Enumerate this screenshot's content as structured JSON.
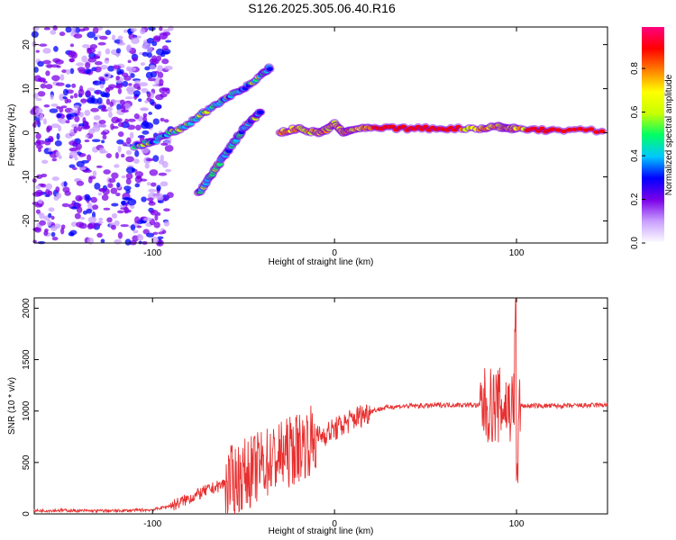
{
  "title": "S126.2025.305.06.40.R16",
  "chart_data": [
    {
      "type": "heatmap",
      "xlabel": "Height of straight line (km)",
      "ylabel": "Frequency (Hz)",
      "xlim": [
        -165,
        150
      ],
      "ylim": [
        -25,
        24
      ],
      "xticks": [
        -100,
        0,
        100
      ],
      "yticks": [
        -20,
        -10,
        0,
        10,
        20
      ],
      "colorbar": {
        "label": "Normalized spectral amplitude",
        "range": [
          0,
          0.99
        ],
        "ticks": [
          0,
          0.2,
          0.4,
          0.6,
          0.8
        ],
        "tick_labels": [
          "0.0",
          "0.2",
          "0.4",
          "0.6",
          "0.8"
        ],
        "colors": [
          "#ffffff",
          "#c9a0ff",
          "#7b00e8",
          "#0000ff",
          "#00c8ff",
          "#00ff64",
          "#c8ff00",
          "#ffff00",
          "#ff8000",
          "#ff0000",
          "#ff0080"
        ]
      },
      "features": [
        {
          "name": "carrier line",
          "x": [
            -30,
            -20,
            -10,
            -5,
            0,
            5,
            10,
            20,
            40,
            60,
            80,
            90,
            95,
            100,
            120,
            150
          ],
          "y": [
            0,
            1,
            0,
            0.5,
            2,
            0,
            1,
            1,
            1,
            1,
            1,
            1.5,
            1,
            1,
            0.5,
            0.5
          ]
        },
        {
          "name": "upper arm",
          "x": [
            -110,
            -100,
            -90,
            -80,
            -70,
            -60,
            -50,
            -40,
            -35
          ],
          "y": [
            -3,
            -2,
            0,
            2,
            5,
            8,
            10,
            13,
            15
          ]
        },
        {
          "name": "lower arm",
          "x": [
            -75,
            -70,
            -65,
            -60,
            -55,
            -50,
            -45,
            -40
          ],
          "y": [
            -14,
            -11,
            -8,
            -5,
            -2,
            1,
            3,
            5
          ]
        }
      ]
    },
    {
      "type": "line",
      "xlabel": "Height of straight line (km)",
      "ylabel": "SNR (10 * v/v)",
      "xlim": [
        -165,
        150
      ],
      "ylim": [
        0,
        2100
      ],
      "xticks": [
        -100,
        0,
        100
      ],
      "yticks": [
        0,
        500,
        1000,
        1500,
        2000
      ],
      "series": [
        {
          "name": "SNR",
          "color": "#e83030",
          "x": [
            -165,
            -150,
            -140,
            -130,
            -120,
            -110,
            -100,
            -95,
            -90,
            -85,
            -80,
            -75,
            -70,
            -65,
            -60,
            -55,
            -50,
            -45,
            -40,
            -35,
            -30,
            -25,
            -20,
            -15,
            -10,
            -5,
            0,
            5,
            10,
            15,
            20,
            25,
            30,
            40,
            50,
            60,
            70,
            75,
            80,
            85,
            90,
            95,
            100,
            105,
            110,
            120,
            130,
            140,
            150
          ],
          "y": [
            30,
            35,
            30,
            30,
            30,
            35,
            40,
            60,
            80,
            110,
            150,
            190,
            230,
            260,
            300,
            330,
            380,
            420,
            480,
            520,
            560,
            600,
            650,
            700,
            740,
            780,
            820,
            870,
            920,
            960,
            1000,
            1020,
            1040,
            1050,
            1050,
            1060,
            1060,
            1060,
            1050,
            1050,
            1050,
            1050,
            1050,
            1050,
            1050,
            1050,
            1050,
            1055,
            1060
          ]
        }
      ]
    }
  ]
}
